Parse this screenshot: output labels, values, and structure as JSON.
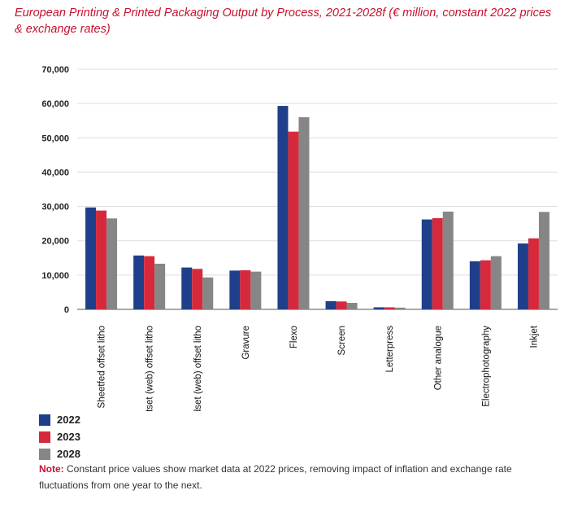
{
  "title": "European Printing & Printed Packaging Output by Process, 2021-2028f (€ million, constant 2022 prices & exchange rates)",
  "note": {
    "label": "Note:",
    "text": " Constant price values show market data at 2022 prices, removing impact of inflation and exchange rate fluctuations from one year to the next."
  },
  "chart_data": {
    "type": "bar",
    "title": "European Printing & Printed Packaging Output by Process, 2021-2028f (€ million, constant 2022 prices & exchange rates)",
    "categories": [
      "Sheetfed offset litho",
      "Heatset (web) offset litho",
      "Coldset (web) offset litho",
      "Gravure",
      "Flexo",
      "Screen",
      "Letterpress",
      "Other analogue",
      "Electrophotography",
      "Inkjet"
    ],
    "series": [
      {
        "name": "2022",
        "color": "#1f3f8a",
        "values": [
          29700,
          15700,
          12200,
          11300,
          59300,
          2400,
          600,
          26200,
          14000,
          19200
        ]
      },
      {
        "name": "2023",
        "color": "#d62a3c",
        "values": [
          28800,
          15500,
          11800,
          11400,
          51800,
          2300,
          600,
          26600,
          14300,
          20700
        ]
      },
      {
        "name": "2028",
        "color": "#868686",
        "values": [
          26500,
          13300,
          9300,
          11000,
          56000,
          1900,
          500,
          28500,
          15500,
          28400
        ]
      }
    ],
    "ylim": [
      0,
      70000
    ],
    "yticks": [
      "0",
      "10,000",
      "20,000",
      "30,000",
      "40,000",
      "50,000",
      "60,000",
      "70,000"
    ],
    "grid": true,
    "legend": "bottom-left"
  }
}
